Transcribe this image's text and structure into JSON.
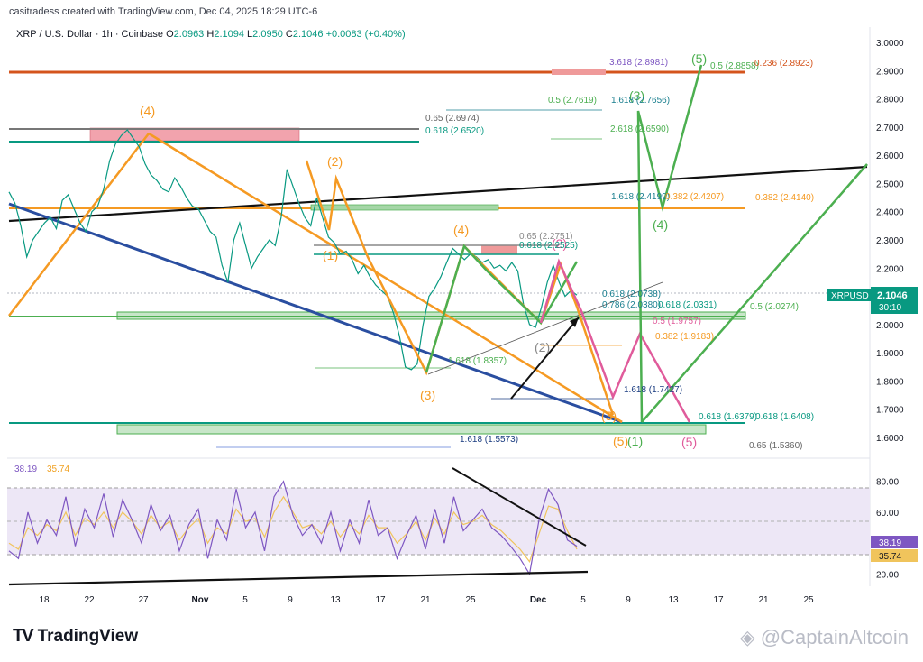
{
  "header": {
    "credit": "casitradess created with TradingView.com, Dec 04, 2025 18:29 UTC-6",
    "symbol": "XRP / U.S. Dollar · 1h · Coinbase",
    "o_label": "O",
    "o_val": "2.0963",
    "h_label": "H",
    "h_val": "2.1094",
    "l_label": "L",
    "l_val": "2.0950",
    "c_label": "C",
    "c_val": "2.1046",
    "change": "+0.0083 (+0.40%)"
  },
  "price_tag": {
    "symbol": "XRPUSD",
    "price": "2.1046",
    "countdown": "30:10"
  },
  "rsi_tags": {
    "rsi": "38.19",
    "ma": "35.74"
  },
  "footer": {
    "brand": "TradingView",
    "watermark": "@CaptainAltcoin"
  },
  "colors": {
    "up": "#089981",
    "orange": "#f59a23",
    "green": "#4caf50",
    "blue": "#2a4ea0",
    "pink": "#e05b9b",
    "red_line": "#d4541c",
    "rsi_line": "#7e57c2",
    "rsi_ma": "#f0c45c"
  },
  "chart_data": [
    {
      "type": "line",
      "title": "XRP / U.S. Dollar · 1h · Coinbase",
      "ylim": [
        1.53,
        3.03
      ],
      "y_ticks": [
        "3.0000",
        "2.9000",
        "2.8000",
        "2.7000",
        "2.6000",
        "2.5000",
        "2.4000",
        "2.3000",
        "2.2000",
        "2.1000",
        "2.0000",
        "1.9000",
        "1.8000",
        "1.7000",
        "1.6000"
      ],
      "x_ticks": [
        "18",
        "22",
        "27",
        "Nov",
        "5",
        "9",
        "13",
        "17",
        "21",
        "25",
        "Dec",
        "5",
        "9",
        "13",
        "17",
        "21",
        "25"
      ],
      "series": [
        {
          "values": [
            2.47,
            2.43,
            2.35,
            2.24,
            2.3,
            2.33,
            2.36,
            2.38,
            2.34,
            2.44,
            2.46,
            2.41,
            2.36,
            2.33,
            2.4,
            2.42,
            2.48,
            2.58,
            2.64,
            2.67,
            2.69,
            2.66,
            2.63,
            2.57,
            2.53,
            2.51,
            2.48,
            2.47,
            2.52,
            2.49,
            2.45,
            2.42,
            2.41,
            2.37,
            2.33,
            2.31,
            2.21,
            2.15,
            2.3,
            2.36,
            2.28,
            2.2,
            2.24,
            2.27,
            2.3,
            2.28,
            2.38,
            2.55,
            2.49,
            2.43,
            2.38,
            2.35,
            2.45,
            2.38,
            2.31,
            2.29,
            2.25,
            2.26,
            2.23,
            2.18,
            2.21,
            2.17,
            2.14,
            2.12,
            2.1,
            2.04,
            1.96,
            1.85,
            1.84,
            1.86,
            2.0,
            2.1,
            2.13,
            2.17,
            2.22,
            2.27,
            2.25,
            2.23,
            2.25,
            2.24,
            2.22,
            2.23,
            2.2,
            2.21,
            2.19,
            2.22,
            2.19,
            2.07,
            2.0,
            1.99,
            2.06,
            2.15,
            2.21,
            2.15,
            2.1,
            2.12,
            2.1046
          ]
        }
      ],
      "horizontal_levels": [
        2.895,
        2.7,
        2.65,
        2.42,
        2.41,
        2.285,
        2.265,
        2.03,
        2.02,
        1.645,
        1.63
      ],
      "trendlines": [
        "XRPUSD upper black trendline",
        "blue lower trendline",
        "orange wedge lines"
      ],
      "elliott_labels": [
        "(4)",
        "(2)",
        "(1)",
        "(4)",
        "(3)",
        "(2)",
        "(3)",
        "(5)",
        "(5)",
        "(1)",
        "(2)",
        "(4)",
        "(3)",
        "(5)",
        "(5)",
        "(2)",
        "(3)",
        "(5)"
      ],
      "fib_labels": [
        "3.618 (2.8981)",
        "0.5 (2.8858)",
        "0.236 (2.8923)",
        "0.65 (2.6974)",
        "0.618 (2.6520)",
        "0.5 (2.7619)",
        "1.618 (2.7656)",
        "2.618 (2.6590)",
        "1.618 (2.4199)",
        "0.382 (2.4207)",
        "0.382 (2.4140)",
        "0.65 (2.2751)",
        "0.618 (2.2525)",
        "0.618 (2.0738)",
        "0.786 (2.0380)",
        "0.618 (2.0331)",
        "0.5 (1.9757)",
        "0.5 (2.0274)",
        "0.382 (1.9183)",
        "1.618 (1.8357)",
        "1.618 (1.7427)",
        "0.618 (1.6379)",
        "0.618 (1.6408)",
        "1.618 (1.5573)",
        "0.65 (1.5360)"
      ]
    },
    {
      "type": "line",
      "title": "",
      "ylim": [
        15,
        88
      ],
      "y_ticks": [
        "80.00",
        "60.00",
        "20.00"
      ],
      "series": [
        {
          "values": [
            35,
            30,
            60,
            40,
            55,
            45,
            70,
            38,
            62,
            50,
            72,
            44,
            68,
            55,
            40,
            65,
            48,
            58,
            35,
            52,
            62,
            30,
            55,
            42,
            75,
            50,
            60,
            35,
            70,
            80,
            58,
            45,
            52,
            40,
            60,
            35,
            55,
            40,
            68,
            45,
            50,
            30,
            45,
            58,
            36,
            62,
            40,
            70,
            48,
            55,
            62,
            50,
            45,
            38,
            30,
            20,
            55,
            75,
            65,
            42,
            38
          ]
        },
        {
          "values": [
            40,
            36,
            50,
            45,
            52,
            48,
            60,
            45,
            56,
            52,
            60,
            50,
            60,
            54,
            46,
            58,
            50,
            54,
            42,
            50,
            56,
            40,
            50,
            46,
            62,
            54,
            56,
            44,
            60,
            70,
            60,
            50,
            52,
            46,
            54,
            44,
            52,
            46,
            58,
            50,
            50,
            40,
            46,
            54,
            42,
            56,
            46,
            60,
            52,
            54,
            58,
            52,
            48,
            42,
            36,
            28,
            46,
            64,
            62,
            48,
            36
          ]
        }
      ]
    }
  ]
}
